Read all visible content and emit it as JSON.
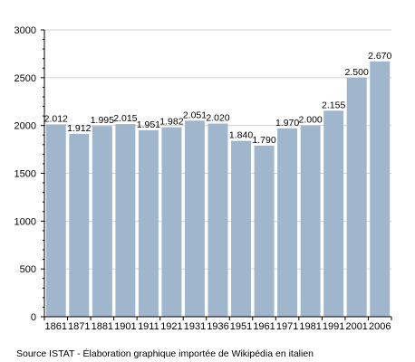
{
  "chart_data": {
    "type": "bar",
    "title": "",
    "xlabel": "",
    "ylabel": "",
    "ylim": [
      0,
      3000
    ],
    "yticks": [
      "0",
      "500",
      "1000",
      "1500",
      "2000",
      "2500",
      "3000"
    ],
    "grid": true,
    "categories": [
      "1861",
      "1871",
      "1881",
      "1901",
      "1911",
      "1921",
      "1931",
      "1936",
      "1951",
      "1961",
      "1971",
      "1981",
      "1991",
      "2001",
      "2006"
    ],
    "values": [
      2012,
      1912,
      1995,
      2015,
      1951,
      1982,
      2051,
      2020,
      1840,
      1790,
      1970,
      2000,
      2155,
      2500,
      2670
    ],
    "data_labels": [
      "2.012",
      "1.912",
      "1.995",
      "2.015",
      "1.951",
      "1.982",
      "2.051",
      "2.020",
      "1.840",
      "1.790",
      "1.970",
      "2.000",
      "2.155",
      "2.500",
      "2.670"
    ],
    "bar_color": "#9fb6cd"
  },
  "footer": {
    "source": "Source ISTAT - Élaboration graphique importée de Wikipédia en italien"
  }
}
